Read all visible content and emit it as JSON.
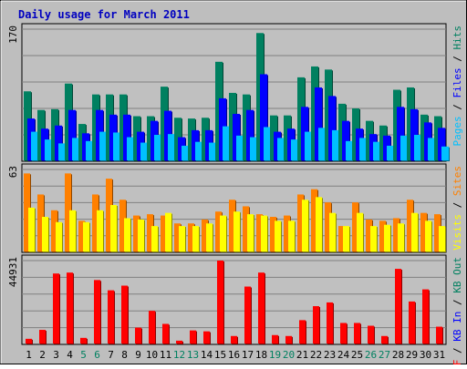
{
  "chart_data": [
    {
      "type": "bar",
      "title": "Daily usage for March 2011",
      "ylabel_parts": [
        {
          "text": "Pages",
          "color": "#00c0ff"
        },
        {
          "text": " / ",
          "color": "#000000"
        },
        {
          "text": "Files",
          "color": "#0000ff"
        },
        {
          "text": " / ",
          "color": "#000000"
        },
        {
          "text": "Hits",
          "color": "#008060"
        }
      ],
      "ymax_label": "170",
      "ylim": [
        0,
        170
      ],
      "categories": [
        "1",
        "2",
        "3",
        "4",
        "5",
        "6",
        "7",
        "8",
        "9",
        "10",
        "11",
        "12",
        "13",
        "14",
        "15",
        "16",
        "17",
        "18",
        "19",
        "20",
        "21",
        "22",
        "23",
        "24",
        "25",
        "26",
        "27",
        "28",
        "29",
        "30",
        "31"
      ],
      "weekend_days": [
        "5",
        "6",
        "12",
        "13",
        "19",
        "20",
        "26",
        "27"
      ],
      "series": [
        {
          "name": "Hits",
          "color": "#008060",
          "values": [
            90,
            66,
            67,
            100,
            48,
            86,
            86,
            86,
            58,
            58,
            96,
            56,
            55,
            56,
            128,
            88,
            86,
            165,
            59,
            59,
            108,
            122,
            118,
            74,
            68,
            52,
            46,
            92,
            95,
            60,
            58
          ]
        },
        {
          "name": "Files",
          "color": "#0000ff",
          "values": [
            55,
            42,
            46,
            66,
            36,
            66,
            60,
            60,
            38,
            52,
            65,
            31,
            40,
            40,
            81,
            61,
            66,
            112,
            38,
            42,
            70,
            95,
            84,
            52,
            42,
            35,
            33,
            70,
            67,
            50,
            43
          ]
        },
        {
          "name": "Pages",
          "color": "#00c0ff",
          "values": [
            38,
            28,
            23,
            30,
            26,
            38,
            37,
            31,
            24,
            34,
            35,
            20,
            25,
            24,
            45,
            33,
            31,
            44,
            30,
            28,
            38,
            43,
            40,
            26,
            30,
            25,
            20,
            33,
            34,
            30,
            19
          ]
        }
      ]
    },
    {
      "type": "bar",
      "ylabel_parts": [
        {
          "text": "Visits",
          "color": "#ffff00"
        },
        {
          "text": " / ",
          "color": "#000000"
        },
        {
          "text": "Sites",
          "color": "#ff8000"
        }
      ],
      "ymax_label": "63",
      "ylim": [
        0,
        63
      ],
      "categories": [
        "1",
        "2",
        "3",
        "4",
        "5",
        "6",
        "7",
        "8",
        "9",
        "10",
        "11",
        "12",
        "13",
        "14",
        "15",
        "16",
        "17",
        "18",
        "19",
        "20",
        "21",
        "22",
        "23",
        "24",
        "25",
        "26",
        "27",
        "28",
        "29",
        "30",
        "31"
      ],
      "series": [
        {
          "name": "Sites",
          "color": "#ff8000",
          "values": [
            60,
            44,
            32,
            60,
            24,
            44,
            56,
            40,
            28,
            29,
            28,
            22,
            22,
            25,
            31,
            40,
            35,
            29,
            27,
            28,
            44,
            48,
            38,
            20,
            38,
            25,
            24,
            26,
            40,
            30,
            29
          ]
        },
        {
          "name": "Visits",
          "color": "#ffff00",
          "values": [
            34,
            27,
            23,
            32,
            23,
            32,
            36,
            26,
            25,
            20,
            30,
            20,
            20,
            22,
            28,
            31,
            29,
            28,
            24,
            24,
            40,
            42,
            30,
            20,
            30,
            20,
            21,
            22,
            30,
            24,
            20
          ]
        }
      ]
    },
    {
      "type": "bar",
      "ylabel_parts": [
        {
          "text": "KB F",
          "color": "#ff0000"
        },
        {
          "text": " / ",
          "color": "#000000"
        },
        {
          "text": "KB In",
          "color": "#0000ff"
        },
        {
          "text": " / ",
          "color": "#000000"
        },
        {
          "text": "KB Out",
          "color": "#008060"
        }
      ],
      "ymax_label": "44931",
      "ylim": [
        0,
        44931
      ],
      "categories": [
        "1",
        "2",
        "3",
        "4",
        "5",
        "6",
        "7",
        "8",
        "9",
        "10",
        "11",
        "12",
        "13",
        "14",
        "15",
        "16",
        "17",
        "18",
        "19",
        "20",
        "21",
        "22",
        "23",
        "24",
        "25",
        "26",
        "27",
        "28",
        "29",
        "30",
        "31"
      ],
      "series": [
        {
          "name": "KB F",
          "color": "#ff0000",
          "values": [
            3000,
            7800,
            38000,
            38500,
            3500,
            34500,
            29000,
            31500,
            9000,
            18000,
            11000,
            2000,
            7500,
            7000,
            44931,
            4500,
            31000,
            38500,
            5000,
            4500,
            13000,
            20500,
            22500,
            11500,
            11500,
            10000,
            4500,
            40500,
            23000,
            29500,
            9500
          ]
        }
      ]
    }
  ]
}
